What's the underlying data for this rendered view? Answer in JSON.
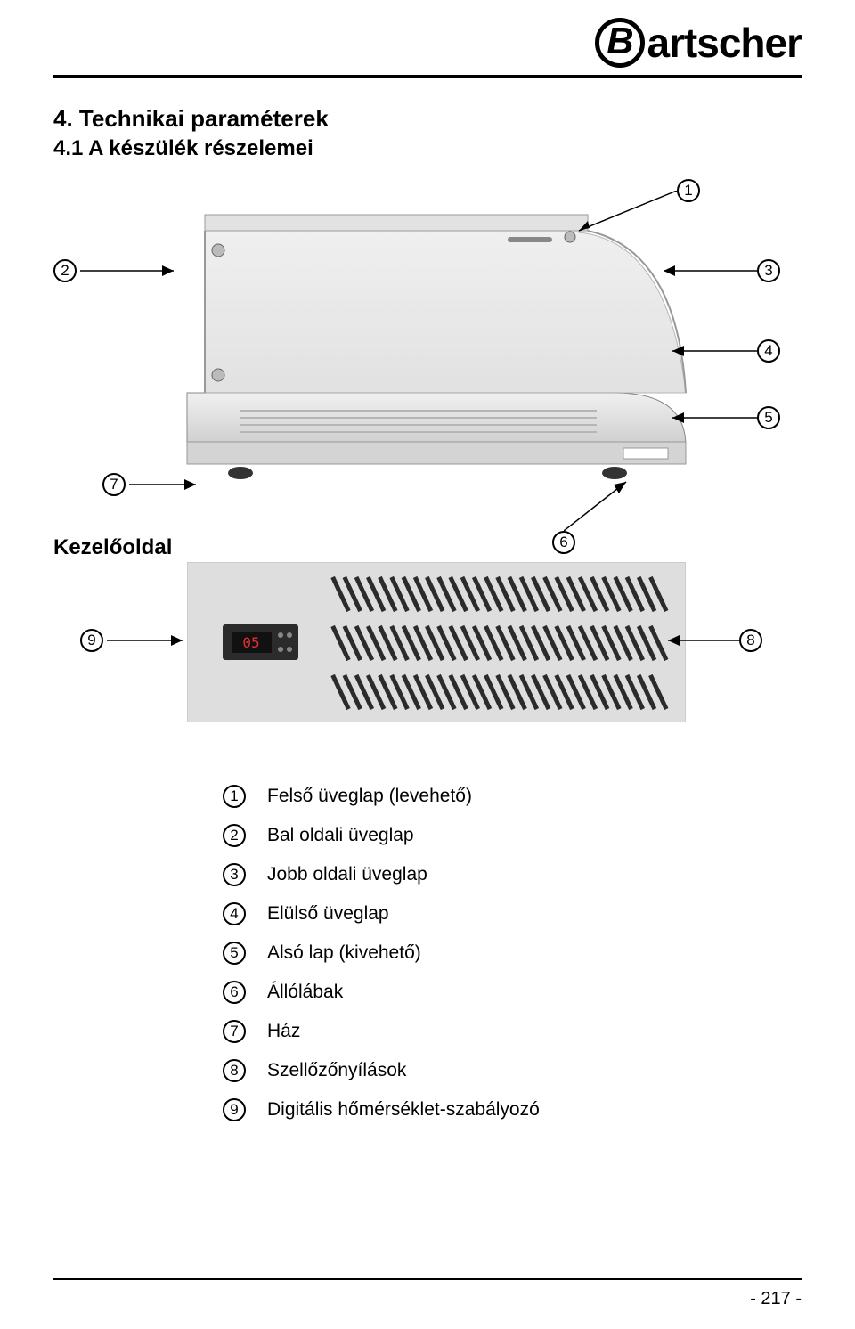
{
  "logo": {
    "initial": "B",
    "rest": "artscher"
  },
  "section_title": "4. Technikai paraméterek",
  "subsection_title": "4.1 A készülék részelemei",
  "side_label": "Kezelőoldal",
  "callouts": {
    "c1": "1",
    "c2": "2",
    "c3": "3",
    "c4": "4",
    "c5": "5",
    "c6": "6",
    "c7": "7",
    "c8": "8",
    "c9": "9"
  },
  "legend": [
    {
      "num": "1",
      "text": "Felső üveglap (levehető)"
    },
    {
      "num": "2",
      "text": "Bal oldali üveglap"
    },
    {
      "num": "3",
      "text": "Jobb oldali üveglap"
    },
    {
      "num": "4",
      "text": "Elülső üveglap"
    },
    {
      "num": "5",
      "text": "Alsó lap (kivehető)"
    },
    {
      "num": "6",
      "text": "Állólábak"
    },
    {
      "num": "7",
      "text": "Ház"
    },
    {
      "num": "8",
      "text": "Szellőzőnyílások"
    },
    {
      "num": "9",
      "text": "Digitális hőmérséklet-szabályozó"
    }
  ],
  "page_number": "- 217 -",
  "colors": {
    "text": "#000000",
    "background": "#ffffff",
    "product_light": "#e8e8e8",
    "product_mid": "#cfcfcf",
    "product_dark": "#9a9a9a",
    "panel_bg": "#d9d9d9",
    "slot": "#2b2b2b"
  },
  "typography": {
    "section_fontsize_pt": 20,
    "subsection_fontsize_pt": 18,
    "legend_fontsize_pt": 16,
    "callout_fontsize_pt": 13,
    "logo_fontsize_pt": 34,
    "font_family": "Arial / Verdana"
  },
  "diagram": {
    "type": "infographic",
    "product_view": {
      "desc": "refrigerated display case, front-angled view, grayscale photo-like rendering",
      "labelled_parts": [
        1,
        2,
        3,
        4,
        5,
        6,
        7
      ]
    },
    "rear_panel": {
      "desc": "operator-side panel with ventilation slots and digital controller",
      "labelled_parts": [
        8,
        9
      ],
      "slot_rows": 3,
      "slot_count_approx": 28,
      "slot_angle_deg": -60
    }
  }
}
